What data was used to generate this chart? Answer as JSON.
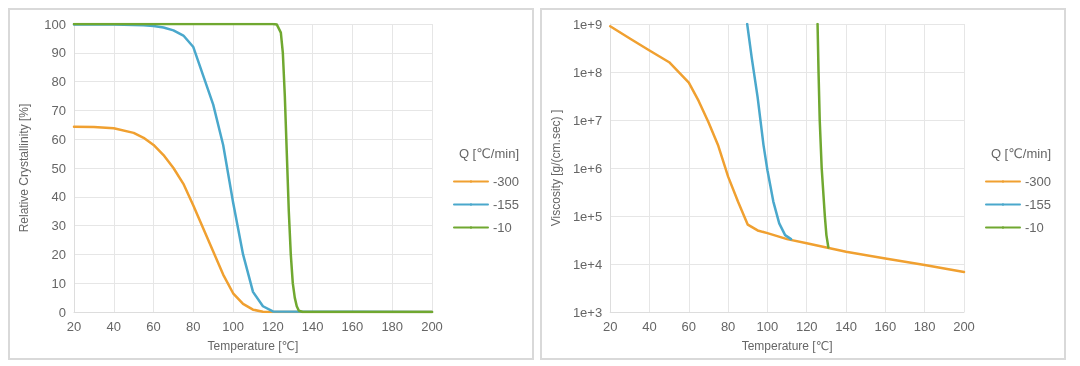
{
  "chart_data": [
    {
      "type": "line",
      "xlabel": "Temperature [℃]",
      "ylabel": "Relative Crystallinity [%]",
      "legend_title": "Q [℃/min]",
      "legend": "right",
      "grid": true,
      "marker": "none",
      "line_style": "solid",
      "xlim": [
        20,
        200
      ],
      "xticks": [
        20,
        40,
        60,
        80,
        100,
        120,
        140,
        160,
        180,
        200
      ],
      "ylim": [
        0,
        100
      ],
      "yticks": [
        0,
        10,
        20,
        30,
        40,
        50,
        60,
        70,
        80,
        90,
        100
      ],
      "series": [
        {
          "name": "-300",
          "color": "#f0a030",
          "x": [
            20,
            30,
            40,
            50,
            55,
            60,
            65,
            70,
            75,
            80,
            85,
            90,
            95,
            100,
            105,
            110,
            115,
            120,
            200
          ],
          "values": [
            64.3,
            64.2,
            63.8,
            62.2,
            60.5,
            58,
            54.5,
            50,
            44.5,
            37,
            29,
            21,
            13,
            6.5,
            2.8,
            0.8,
            0.1,
            0,
            0
          ]
        },
        {
          "name": "-155",
          "color": "#4aa8cc",
          "x": [
            20,
            40,
            55,
            60,
            65,
            70,
            75,
            80,
            85,
            90,
            95,
            100,
            105,
            110,
            115,
            120,
            200
          ],
          "values": [
            99.8,
            99.8,
            99.6,
            99.3,
            98.8,
            97.8,
            96,
            92,
            82,
            72,
            58,
            38,
            20,
            7,
            2,
            0.2,
            0
          ]
        },
        {
          "name": "-10",
          "color": "#70a830",
          "x": [
            20,
            120,
            122,
            124,
            125,
            126,
            127,
            128,
            129,
            130,
            131,
            132,
            133,
            135,
            200
          ],
          "values": [
            100,
            100,
            99.8,
            97,
            90,
            75,
            55,
            35,
            20,
            10,
            5,
            2,
            0.5,
            0,
            0
          ]
        }
      ]
    },
    {
      "type": "line",
      "xlabel": "Temperature [℃]",
      "ylabel": "Viscosity [g/(cm.sec) ]",
      "legend_title": "Q [℃/min]",
      "legend": "right",
      "grid": true,
      "marker": "none",
      "line_style": "solid",
      "log": "y",
      "xlim": [
        20,
        200
      ],
      "xticks": [
        20,
        40,
        60,
        80,
        100,
        120,
        140,
        160,
        180,
        200
      ],
      "ylim": [
        1000,
        1000000000
      ],
      "yticks": [
        {
          "value": 1000,
          "label": "1e+3"
        },
        {
          "value": 10000,
          "label": "1e+4"
        },
        {
          "value": 100000,
          "label": "1e+5"
        },
        {
          "value": 1000000,
          "label": "1e+6"
        },
        {
          "value": 10000000,
          "label": "1e+7"
        },
        {
          "value": 100000000,
          "label": "1e+8"
        },
        {
          "value": 1000000000,
          "label": "1e+9"
        }
      ],
      "series": [
        {
          "name": "-300",
          "color": "#f0a030",
          "x": [
            20,
            30,
            40,
            50,
            60,
            65,
            70,
            75,
            80,
            85,
            90,
            95,
            100,
            110,
            120,
            130,
            140,
            160,
            180,
            200
          ],
          "values": [
            900000000,
            500000000,
            280000000,
            160000000,
            60000000,
            25000000,
            9000000,
            2900000,
            660000,
            200000,
            66000,
            50000,
            44000,
            33000,
            27000,
            22000,
            18000,
            13000,
            9500,
            6800
          ]
        },
        {
          "name": "-155",
          "color": "#4aa8cc",
          "x": [
            89.7,
            92,
            95,
            98,
            100,
            103,
            106,
            109,
            112
          ],
          "values": [
            1000000000,
            200000000,
            30000000,
            3000000,
            900000,
            200000,
            70000,
            40000,
            33000
          ]
        },
        {
          "name": "-10",
          "color": "#70a830",
          "x": [
            125.5,
            126,
            126.6,
            127.6,
            129.2,
            130,
            131
          ],
          "values": [
            1000000000,
            100000000,
            10000000,
            1000000,
            100000,
            40000,
            22000
          ]
        }
      ]
    }
  ]
}
